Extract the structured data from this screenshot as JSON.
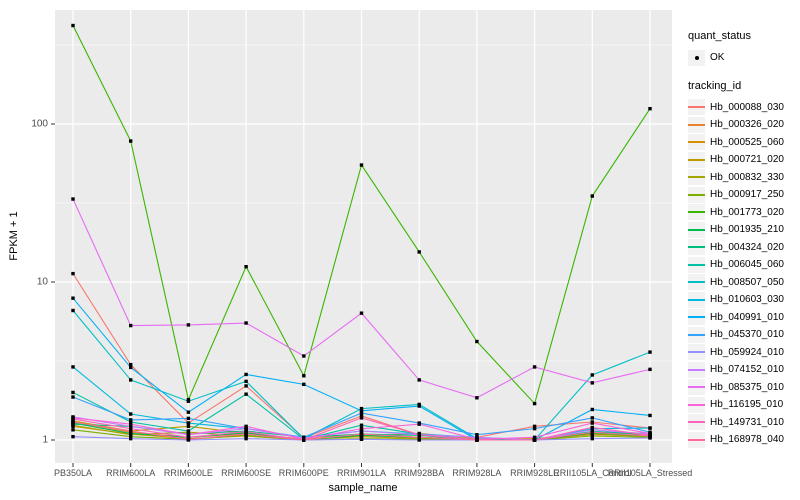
{
  "figure": {
    "background": "#FFFFFF",
    "panel_background": "#EBEBEB",
    "gridline_color": "#FFFFFF",
    "axis_text_color": "#4D4D4D",
    "legend": {
      "quant_status_title": "quant_status",
      "quant_status_items": [
        {
          "label": "OK"
        }
      ],
      "tracking_id_title": "tracking_id",
      "key_background": "#F2F2F2"
    }
  },
  "chart_data": {
    "type": "line",
    "title": "",
    "xlabel": "sample_name",
    "ylabel": "FPKM + 1",
    "y_scale": "log10",
    "y_ticks": [
      1,
      10,
      100
    ],
    "y_minor_ticks": [
      3.162,
      31.62,
      316.2
    ],
    "ylim": [
      1,
      500
    ],
    "grid": true,
    "legend_position": "right",
    "point_marker": {
      "label": "OK",
      "color": "#000000",
      "shape": "point"
    },
    "categories": [
      "PB350LA",
      "RRIM600LA",
      "RRIM600LE",
      "RRIM600SE",
      "RRIM600PE",
      "RRIM901LA",
      "RRIM928BA",
      "RRIM928LA",
      "RRIM928LE",
      "RRII105LA_Control",
      "RRII105LA_Stressed"
    ],
    "series": [
      {
        "name": "Hb_000088_030",
        "color": "#F8766D",
        "values": [
          11.3,
          3.0,
          1.28,
          2.2,
          1.03,
          1.42,
          1.08,
          1.04,
          1.22,
          1.3,
          1.19
        ]
      },
      {
        "name": "Hb_000326_020",
        "color": "#EA8331",
        "values": [
          1.3,
          1.12,
          1.04,
          1.1,
          1.01,
          1.06,
          1.1,
          1.02,
          1.01,
          1.08,
          1.06
        ]
      },
      {
        "name": "Hb_000525_060",
        "color": "#D89000",
        "values": [
          1.22,
          1.09,
          1.02,
          1.06,
          1.01,
          1.09,
          1.04,
          1.01,
          1.02,
          1.1,
          1.08
        ]
      },
      {
        "name": "Hb_000721_020",
        "color": "#C09B00",
        "values": [
          1.32,
          1.14,
          1.22,
          1.1,
          1.01,
          1.05,
          1.02,
          1.01,
          1.01,
          1.12,
          1.07
        ]
      },
      {
        "name": "Hb_000832_330",
        "color": "#A3A500",
        "values": [
          1.24,
          1.08,
          1.12,
          1.06,
          1.0,
          1.08,
          1.03,
          1.0,
          1.0,
          1.09,
          1.05
        ]
      },
      {
        "name": "Hb_000917_250",
        "color": "#7CAE00",
        "values": [
          1.16,
          1.05,
          1.01,
          1.07,
          1.0,
          1.02,
          1.01,
          1.0,
          1.0,
          1.06,
          1.04
        ]
      },
      {
        "name": "Hb_001773_020",
        "color": "#39B600",
        "values": [
          420,
          78,
          1.8,
          12.5,
          2.55,
          55,
          15.5,
          4.2,
          1.7,
          35,
          125
        ]
      },
      {
        "name": "Hb_001935_210",
        "color": "#00BB4E",
        "values": [
          1.28,
          1.1,
          1.04,
          1.11,
          1.0,
          1.07,
          1.04,
          1.0,
          1.0,
          1.11,
          1.06
        ]
      },
      {
        "name": "Hb_004324_020",
        "color": "#00BF7D",
        "values": [
          1.26,
          1.22,
          1.09,
          1.14,
          1.04,
          1.09,
          1.07,
          1.0,
          1.0,
          1.13,
          1.08
        ]
      },
      {
        "name": "Hb_006045_060",
        "color": "#00C1A3",
        "values": [
          2.0,
          1.3,
          1.14,
          1.95,
          1.01,
          1.24,
          1.09,
          1.0,
          1.0,
          1.13,
          1.1
        ]
      },
      {
        "name": "Hb_008507_050",
        "color": "#00BFC4",
        "values": [
          6.6,
          2.4,
          1.76,
          2.35,
          1.02,
          1.58,
          1.68,
          1.02,
          1.0,
          2.58,
          3.6
        ]
      },
      {
        "name": "Hb_010603_030",
        "color": "#00BAE0",
        "values": [
          2.9,
          1.46,
          1.28,
          1.18,
          1.04,
          1.14,
          1.09,
          1.04,
          1.0,
          1.18,
          1.19
        ]
      },
      {
        "name": "Hb_040991_010",
        "color": "#00B0F6",
        "values": [
          7.9,
          2.88,
          1.5,
          2.6,
          2.25,
          1.53,
          1.64,
          1.0,
          1.0,
          1.56,
          1.43
        ]
      },
      {
        "name": "Hb_045370_010",
        "color": "#35A2FF",
        "values": [
          1.87,
          1.34,
          1.37,
          1.18,
          1.04,
          1.48,
          1.28,
          1.08,
          1.18,
          1.38,
          1.12
        ]
      },
      {
        "name": "Hb_059924_010",
        "color": "#9590FF",
        "values": [
          1.05,
          1.02,
          1.0,
          1.02,
          1.0,
          1.01,
          1.0,
          1.0,
          1.0,
          1.02,
          1.03
        ]
      },
      {
        "name": "Hb_074152_010",
        "color": "#C77CFF",
        "values": [
          1.4,
          1.22,
          1.08,
          1.18,
          1.03,
          1.14,
          1.08,
          1.04,
          1.0,
          1.16,
          1.09
        ]
      },
      {
        "name": "Hb_085375_010",
        "color": "#E76BF3",
        "values": [
          33.5,
          5.3,
          5.35,
          5.5,
          3.4,
          6.35,
          2.4,
          1.85,
          2.9,
          2.3,
          2.8
        ]
      },
      {
        "name": "Hb_116195_010",
        "color": "#FA62DB",
        "values": [
          1.38,
          1.26,
          1.08,
          1.22,
          1.01,
          1.18,
          1.26,
          1.01,
          1.04,
          1.28,
          1.1
        ]
      },
      {
        "name": "Hb_149731_010",
        "color": "#FF62BC",
        "values": [
          1.36,
          1.18,
          1.04,
          1.13,
          1.0,
          1.38,
          1.08,
          1.0,
          1.0,
          1.2,
          1.07
        ]
      },
      {
        "name": "Hb_168978_040",
        "color": "#FF6A98",
        "values": [
          1.3,
          1.14,
          1.01,
          1.09,
          1.0,
          1.09,
          1.04,
          1.0,
          1.0,
          1.12,
          1.06
        ]
      }
    ]
  }
}
